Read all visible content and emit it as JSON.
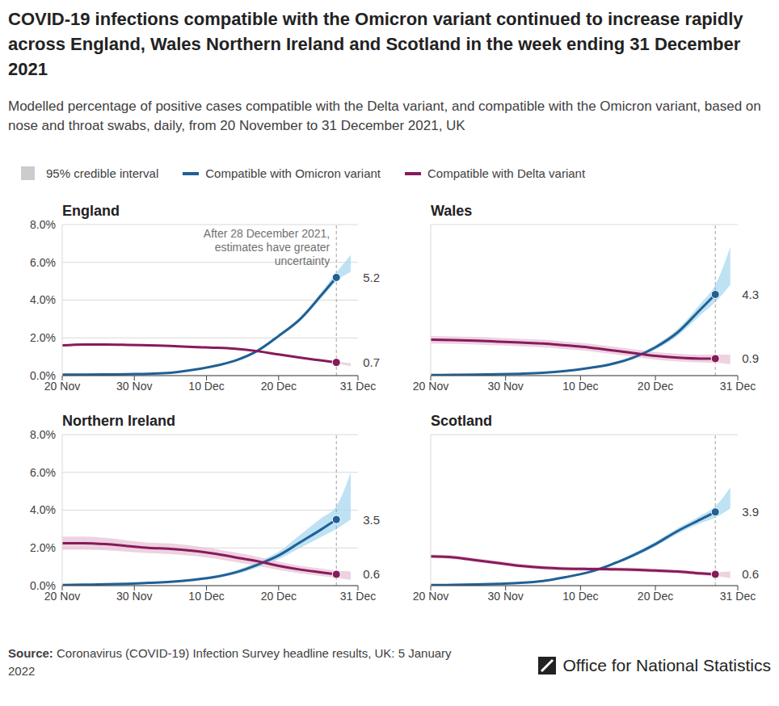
{
  "title": "COVID-19 infections compatible with the Omicron variant continued to increase rapidly across England, Wales Northern Ireland and Scotland in the week ending 31 December 2021",
  "subtitle": "Modelled percentage of positive cases compatible with the Delta variant, and compatible with the Omicron variant, based on nose and throat swabs, daily, from 20 November to 31 December 2021, UK",
  "interval_label": "95% credible interval",
  "interval_color": "#cccccc",
  "source_label": "Source:",
  "source": "Coronavirus (COVID-19) Infection Survey headline results, UK: 5 January 2022",
  "credit": "Office for National Statistics",
  "chart_data": [
    {
      "type": "line",
      "title": "England",
      "x": [
        0,
        3,
        6,
        9,
        12,
        15,
        18,
        21,
        24,
        27,
        30,
        33,
        36,
        38,
        40
      ],
      "xlim": [
        0,
        41
      ],
      "xticks": [
        {
          "value": 0,
          "label": "20 Nov"
        },
        {
          "value": 10,
          "label": "30 Nov"
        },
        {
          "value": 20,
          "label": "10 Dec"
        },
        {
          "value": 30,
          "label": "20 Dec"
        },
        {
          "value": 41,
          "label": "31 Dec"
        }
      ],
      "ylim": [
        0,
        8
      ],
      "yticks": [
        {
          "value": 0,
          "label": "0.0%"
        },
        {
          "value": 2,
          "label": "2.0%"
        },
        {
          "value": 4,
          "label": "4.0%"
        },
        {
          "value": 6,
          "label": "6.0%"
        },
        {
          "value": 8,
          "label": "8.0%"
        }
      ],
      "grid": true,
      "series": [
        {
          "name": "Compatible with Omicron variant",
          "color": "#206095",
          "band_color": "#a8d8f0",
          "values": [
            0.05,
            0.05,
            0.06,
            0.08,
            0.1,
            0.15,
            0.3,
            0.5,
            0.8,
            1.3,
            2.1,
            3.0,
            4.3,
            5.2,
            null
          ],
          "lower": [
            0.04,
            0.04,
            0.05,
            0.07,
            0.09,
            0.14,
            0.28,
            0.47,
            0.76,
            1.24,
            2.02,
            2.9,
            4.15,
            5.0,
            5.5
          ],
          "upper": [
            0.06,
            0.06,
            0.07,
            0.09,
            0.11,
            0.16,
            0.32,
            0.53,
            0.84,
            1.36,
            2.18,
            3.1,
            4.45,
            5.45,
            6.4
          ]
        },
        {
          "name": "Compatible with Delta variant",
          "color": "#871a5b",
          "band_color": "#e8c3d5",
          "values": [
            1.6,
            1.65,
            1.65,
            1.63,
            1.6,
            1.57,
            1.52,
            1.48,
            1.42,
            1.3,
            1.12,
            0.95,
            0.8,
            0.7,
            null
          ],
          "lower": [
            1.56,
            1.61,
            1.61,
            1.59,
            1.56,
            1.53,
            1.48,
            1.44,
            1.38,
            1.26,
            1.08,
            0.91,
            0.76,
            0.65,
            0.5
          ],
          "upper": [
            1.64,
            1.69,
            1.69,
            1.67,
            1.64,
            1.61,
            1.56,
            1.52,
            1.46,
            1.34,
            1.16,
            0.99,
            0.84,
            0.75,
            0.65
          ]
        }
      ],
      "vline": {
        "x": 38,
        "label": "After 28 December 2021, estimates have greater uncertainty"
      },
      "annotations": [
        {
          "text": "5.2",
          "x": 38,
          "y": 5.2
        },
        {
          "text": "0.7",
          "x": 38,
          "y": 0.7
        }
      ]
    },
    {
      "type": "line",
      "title": "Wales",
      "x": [
        0,
        3,
        6,
        9,
        12,
        15,
        18,
        21,
        24,
        27,
        30,
        33,
        36,
        38,
        40
      ],
      "xlim": [
        0,
        41
      ],
      "xticks": [
        {
          "value": 0,
          "label": "20 Nov"
        },
        {
          "value": 10,
          "label": "30 Nov"
        },
        {
          "value": 20,
          "label": "10 Dec"
        },
        {
          "value": 30,
          "label": "20 Dec"
        },
        {
          "value": 41,
          "label": "31 Dec"
        }
      ],
      "ylim": [
        0,
        8
      ],
      "yticks": [
        0,
        2,
        4,
        6,
        8
      ],
      "grid": true,
      "tick_labels": "x",
      "series": [
        {
          "name": "Compatible with Omicron variant",
          "color": "#206095",
          "band_color": "#a8d8f0",
          "values": [
            0.03,
            0.04,
            0.05,
            0.07,
            0.1,
            0.15,
            0.25,
            0.4,
            0.6,
            0.95,
            1.5,
            2.3,
            3.5,
            4.3,
            null
          ],
          "lower": [
            0.01,
            0.02,
            0.03,
            0.05,
            0.08,
            0.12,
            0.21,
            0.35,
            0.54,
            0.87,
            1.38,
            2.12,
            3.2,
            3.9,
            4.8
          ],
          "upper": [
            0.05,
            0.06,
            0.07,
            0.09,
            0.12,
            0.18,
            0.29,
            0.45,
            0.66,
            1.03,
            1.62,
            2.48,
            3.8,
            4.8,
            6.8
          ]
        },
        {
          "name": "Compatible with Delta variant",
          "color": "#871a5b",
          "band_color": "#e8c3d5",
          "values": [
            1.9,
            1.88,
            1.85,
            1.8,
            1.75,
            1.7,
            1.6,
            1.5,
            1.35,
            1.2,
            1.05,
            0.95,
            0.9,
            0.9,
            null
          ],
          "lower": [
            1.7,
            1.68,
            1.65,
            1.6,
            1.55,
            1.5,
            1.4,
            1.3,
            1.15,
            1.0,
            0.85,
            0.75,
            0.7,
            0.68,
            0.6
          ],
          "upper": [
            2.1,
            2.08,
            2.05,
            2.0,
            1.95,
            1.9,
            1.8,
            1.7,
            1.55,
            1.4,
            1.25,
            1.15,
            1.1,
            1.12,
            1.1
          ]
        }
      ],
      "vline": {
        "x": 38
      },
      "annotations": [
        {
          "text": "4.3",
          "x": 38,
          "y": 4.3
        },
        {
          "text": "0.9",
          "x": 38,
          "y": 0.9
        }
      ]
    },
    {
      "type": "line",
      "title": "Northern Ireland",
      "x": [
        0,
        3,
        6,
        9,
        12,
        15,
        18,
        21,
        24,
        27,
        30,
        33,
        36,
        38,
        40
      ],
      "xlim": [
        0,
        41
      ],
      "xticks": [
        {
          "value": 0,
          "label": "20 Nov"
        },
        {
          "value": 10,
          "label": "30 Nov"
        },
        {
          "value": 20,
          "label": "10 Dec"
        },
        {
          "value": 30,
          "label": "20 Dec"
        },
        {
          "value": 41,
          "label": "31 Dec"
        }
      ],
      "ylim": [
        0,
        8
      ],
      "yticks": [
        {
          "value": 0,
          "label": "0.0%"
        },
        {
          "value": 2,
          "label": "2.0%"
        },
        {
          "value": 4,
          "label": "4.0%"
        },
        {
          "value": 6,
          "label": "6.0%"
        },
        {
          "value": 8,
          "label": "8.0%"
        }
      ],
      "grid": true,
      "series": [
        {
          "name": "Compatible with Omicron variant",
          "color": "#206095",
          "band_color": "#a8d8f0",
          "values": [
            0.03,
            0.05,
            0.07,
            0.1,
            0.15,
            0.2,
            0.3,
            0.45,
            0.7,
            1.1,
            1.6,
            2.3,
            3.0,
            3.5,
            null
          ],
          "lower": [
            0.01,
            0.03,
            0.05,
            0.07,
            0.11,
            0.15,
            0.24,
            0.37,
            0.6,
            0.95,
            1.4,
            2.0,
            2.6,
            3.0,
            3.5
          ],
          "upper": [
            0.05,
            0.07,
            0.09,
            0.13,
            0.19,
            0.25,
            0.36,
            0.53,
            0.8,
            1.25,
            1.8,
            2.7,
            3.6,
            4.2,
            6.0
          ]
        },
        {
          "name": "Compatible with Delta variant",
          "color": "#871a5b",
          "band_color": "#e8c3d5",
          "values": [
            2.25,
            2.25,
            2.2,
            2.1,
            2.0,
            1.95,
            1.85,
            1.7,
            1.5,
            1.3,
            1.05,
            0.85,
            0.7,
            0.6,
            null
          ],
          "lower": [
            1.9,
            1.9,
            1.87,
            1.8,
            1.72,
            1.67,
            1.58,
            1.44,
            1.25,
            1.06,
            0.83,
            0.65,
            0.5,
            0.42,
            0.3
          ],
          "upper": [
            2.6,
            2.6,
            2.53,
            2.4,
            2.28,
            2.23,
            2.12,
            1.96,
            1.75,
            1.54,
            1.27,
            1.05,
            0.9,
            0.8,
            0.75
          ]
        }
      ],
      "vline": {
        "x": 38
      },
      "annotations": [
        {
          "text": "3.5",
          "x": 38,
          "y": 3.5
        },
        {
          "text": "0.6",
          "x": 38,
          "y": 0.6
        }
      ]
    },
    {
      "type": "line",
      "title": "Scotland",
      "x": [
        0,
        3,
        6,
        9,
        12,
        15,
        18,
        21,
        24,
        27,
        30,
        33,
        36,
        38,
        40
      ],
      "xlim": [
        0,
        41
      ],
      "xticks": [
        {
          "value": 0,
          "label": "20 Nov"
        },
        {
          "value": 10,
          "label": "30 Nov"
        },
        {
          "value": 20,
          "label": "10 Dec"
        },
        {
          "value": 30,
          "label": "20 Dec"
        },
        {
          "value": 41,
          "label": "31 Dec"
        }
      ],
      "ylim": [
        0,
        8
      ],
      "yticks": [
        0,
        2,
        4,
        6,
        8
      ],
      "grid": true,
      "tick_labels": "x",
      "series": [
        {
          "name": "Compatible with Omicron variant",
          "color": "#206095",
          "band_color": "#a8d8f0",
          "values": [
            0.03,
            0.04,
            0.06,
            0.1,
            0.15,
            0.25,
            0.45,
            0.7,
            1.1,
            1.6,
            2.2,
            2.9,
            3.5,
            3.9,
            null
          ],
          "lower": [
            0.02,
            0.03,
            0.05,
            0.08,
            0.13,
            0.22,
            0.41,
            0.65,
            1.03,
            1.5,
            2.08,
            2.75,
            3.3,
            3.6,
            4.1
          ],
          "upper": [
            0.04,
            0.05,
            0.07,
            0.12,
            0.17,
            0.28,
            0.49,
            0.75,
            1.17,
            1.7,
            2.32,
            3.05,
            3.7,
            4.2,
            5.2
          ]
        },
        {
          "name": "Compatible with Delta variant",
          "color": "#871a5b",
          "band_color": "#e8c3d5",
          "values": [
            1.55,
            1.5,
            1.35,
            1.2,
            1.05,
            0.95,
            0.9,
            0.88,
            0.87,
            0.85,
            0.8,
            0.75,
            0.65,
            0.6,
            null
          ],
          "lower": [
            1.45,
            1.4,
            1.25,
            1.1,
            0.95,
            0.85,
            0.8,
            0.78,
            0.77,
            0.75,
            0.7,
            0.65,
            0.55,
            0.5,
            0.4
          ],
          "upper": [
            1.65,
            1.6,
            1.45,
            1.3,
            1.15,
            1.05,
            1.0,
            0.98,
            0.97,
            0.95,
            0.9,
            0.85,
            0.75,
            0.72,
            0.75
          ]
        }
      ],
      "vline": {
        "x": 38
      },
      "annotations": [
        {
          "text": "3.9",
          "x": 38,
          "y": 3.9
        },
        {
          "text": "0.6",
          "x": 38,
          "y": 0.6
        }
      ]
    }
  ]
}
